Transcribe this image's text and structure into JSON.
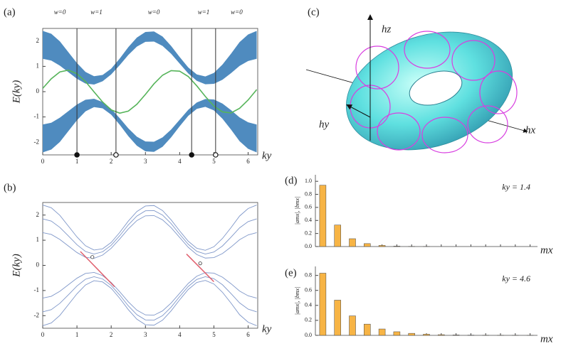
{
  "chart_data": [
    {
      "type": "area",
      "label": "(a)",
      "xlabel": "ky",
      "ylabel": "E(ky)",
      "xlim": [
        0,
        6.28
      ],
      "ylim": [
        -2.5,
        2.5
      ],
      "xticks": [
        0,
        1,
        2,
        3,
        4,
        5,
        6
      ],
      "yticks": [
        -2,
        -1,
        0,
        1,
        2
      ],
      "x": [
        0,
        0.25,
        0.5,
        0.75,
        1,
        1.25,
        1.5,
        1.75,
        2,
        2.25,
        2.5,
        2.75,
        3,
        3.25,
        3.5,
        3.75,
        4,
        4.25,
        4.5,
        4.75,
        5,
        5.25,
        5.5,
        5.75,
        6,
        6.25
      ],
      "band_color": "#4f8bbf",
      "bands": [
        {
          "upper": [
            2.4,
            2.29,
            1.99,
            1.56,
            1.13,
            0.78,
            0.61,
            0.66,
            0.91,
            1.31,
            1.76,
            2.14,
            2.36,
            2.38,
            2.18,
            1.81,
            1.37,
            0.96,
            0.68,
            0.6,
            0.74,
            1.07,
            1.5,
            1.96,
            2.26,
            2.4
          ],
          "lower": [
            1.3,
            1.23,
            1.03,
            0.77,
            0.51,
            0.32,
            0.28,
            0.41,
            0.68,
            1.05,
            1.45,
            1.78,
            1.97,
            1.98,
            1.81,
            1.5,
            1.11,
            0.72,
            0.43,
            0.29,
            0.31,
            0.47,
            0.73,
            1.02,
            1.21,
            1.3
          ]
        },
        {
          "upper": [
            -1.3,
            -1.23,
            -1.03,
            -0.77,
            -0.51,
            -0.32,
            -0.28,
            -0.41,
            -0.68,
            -1.05,
            -1.45,
            -1.78,
            -1.97,
            -1.98,
            -1.81,
            -1.5,
            -1.11,
            -0.72,
            -0.43,
            -0.29,
            -0.31,
            -0.47,
            -0.73,
            -1.02,
            -1.21,
            -1.3
          ],
          "lower": [
            -2.4,
            -2.29,
            -1.99,
            -1.56,
            -1.13,
            -0.78,
            -0.61,
            -0.66,
            -0.91,
            -1.31,
            -1.76,
            -2.14,
            -2.36,
            -2.38,
            -2.18,
            -1.81,
            -1.37,
            -0.96,
            -0.68,
            -0.6,
            -0.74,
            -1.07,
            -1.5,
            -1.96,
            -2.26,
            -2.4
          ]
        }
      ],
      "series": [
        {
          "color": "#56b45a",
          "values": [
            0.13,
            0.51,
            0.78,
            0.85,
            0.71,
            0.4,
            -0.01,
            -0.41,
            -0.72,
            -0.85,
            -0.77,
            -0.5,
            -0.11,
            0.31,
            0.65,
            0.83,
            0.81,
            0.6,
            0.23,
            -0.19,
            -0.57,
            -0.8,
            -0.84,
            -0.66,
            -0.33,
            0.08
          ]
        }
      ],
      "transitions": [
        1.0,
        2.14,
        4.35,
        5.05
      ],
      "transition_markers": [
        "filled",
        "open",
        "filled",
        "open"
      ],
      "phase_labels": [
        "w=0",
        "w=1",
        "w=0",
        "w=1",
        "w=0"
      ]
    },
    {
      "type": "line",
      "label": "(b)",
      "xlabel": "ky",
      "ylabel": "E(ky)",
      "xlim": [
        0,
        6.28
      ],
      "ylim": [
        -2.5,
        2.5
      ],
      "xticks": [
        0,
        1,
        2,
        3,
        4,
        5,
        6
      ],
      "yticks": [
        -2,
        -1,
        0,
        1,
        2
      ],
      "x": [
        0,
        0.25,
        0.5,
        0.75,
        1,
        1.25,
        1.5,
        1.75,
        2,
        2.25,
        2.5,
        2.75,
        3,
        3.25,
        3.5,
        3.75,
        4,
        4.25,
        4.5,
        4.75,
        5,
        5.25,
        5.5,
        5.75,
        6,
        6.25
      ],
      "series": [
        {
          "color": "#7f97c9",
          "values": [
            2.4,
            2.29,
            1.99,
            1.56,
            1.13,
            0.78,
            0.61,
            0.66,
            0.91,
            1.31,
            1.76,
            2.14,
            2.36,
            2.38,
            2.18,
            1.81,
            1.37,
            0.96,
            0.68,
            0.6,
            0.74,
            1.07,
            1.5,
            1.96,
            2.26,
            2.4
          ]
        },
        {
          "color": "#7f97c9",
          "values": [
            1.85,
            1.76,
            1.51,
            1.17,
            0.82,
            0.55,
            0.45,
            0.54,
            0.8,
            1.18,
            1.61,
            1.96,
            2.17,
            2.18,
            2.0,
            1.66,
            1.24,
            0.84,
            0.56,
            0.45,
            0.53,
            0.77,
            1.12,
            1.49,
            1.74,
            1.85
          ]
        },
        {
          "color": "#7f97c9",
          "values": [
            1.3,
            1.23,
            1.03,
            0.77,
            0.51,
            0.32,
            0.28,
            0.41,
            0.68,
            1.05,
            1.45,
            1.78,
            1.97,
            1.98,
            1.81,
            1.5,
            1.11,
            0.72,
            0.43,
            0.29,
            0.31,
            0.47,
            0.73,
            1.02,
            1.21,
            1.3
          ]
        },
        {
          "color": "#7f97c9",
          "values": [
            -1.3,
            -1.23,
            -1.03,
            -0.77,
            -0.51,
            -0.32,
            -0.28,
            -0.41,
            -0.68,
            -1.05,
            -1.45,
            -1.78,
            -1.97,
            -1.98,
            -1.81,
            -1.5,
            -1.11,
            -0.72,
            -0.43,
            -0.29,
            -0.31,
            -0.47,
            -0.73,
            -1.02,
            -1.21,
            -1.3
          ]
        },
        {
          "color": "#7f97c9",
          "values": [
            -1.85,
            -1.76,
            -1.51,
            -1.17,
            -0.82,
            -0.55,
            -0.45,
            -0.54,
            -0.8,
            -1.18,
            -1.61,
            -1.96,
            -2.17,
            -2.18,
            -2.0,
            -1.66,
            -1.24,
            -0.84,
            -0.56,
            -0.45,
            -0.53,
            -0.77,
            -1.12,
            -1.49,
            -1.74,
            -1.85
          ]
        },
        {
          "color": "#7f97c9",
          "values": [
            -2.4,
            -2.29,
            -1.99,
            -1.56,
            -1.13,
            -0.78,
            -0.61,
            -0.66,
            -0.91,
            -1.31,
            -1.76,
            -2.14,
            -2.36,
            -2.38,
            -2.18,
            -1.81,
            -1.37,
            -0.96,
            -0.68,
            -0.6,
            -0.74,
            -1.07,
            -1.5,
            -1.96,
            -2.26,
            -2.4
          ]
        },
        {
          "color": "#e0606e",
          "x": [
            1.1,
            1.6,
            2.1
          ],
          "values": [
            0.55,
            -0.15,
            -0.85
          ]
        },
        {
          "color": "#e0606e",
          "x": [
            4.2,
            4.6,
            5.0
          ],
          "values": [
            0.45,
            -0.1,
            -0.65
          ]
        }
      ],
      "points": {
        "x": [
          1.45,
          4.6
        ],
        "values": [
          0.33,
          0.08
        ]
      }
    },
    {
      "type": "bar",
      "label": "(d)",
      "xlabel": "mx",
      "ylabel": "|amx|, |bmx|",
      "annotation": "ky = 1.4",
      "color": "#f7b445",
      "ylim": [
        0,
        1.1
      ],
      "yticks": [
        {
          "value": 0,
          "label": "0.0"
        },
        0.2,
        0.4,
        0.6,
        0.8,
        {
          "value": 1,
          "label": "1.0"
        }
      ],
      "categories": [
        null,
        null,
        null,
        null,
        null,
        null,
        null,
        null,
        null,
        null,
        null,
        null,
        null,
        null,
        null
      ],
      "values": [
        0.94,
        0.33,
        0.12,
        0.045,
        0.017,
        0.006,
        0.002,
        0.001,
        0,
        0,
        0,
        0,
        0,
        0,
        0
      ]
    },
    {
      "type": "bar",
      "label": "(e)",
      "xlabel": "mx",
      "ylabel": "|amx|, |bmx|",
      "annotation": "ky = 4.6",
      "color": "#f7b445",
      "ylim": [
        0,
        0.92
      ],
      "yticks": [
        {
          "value": 0,
          "label": "0.0"
        },
        0.2,
        0.4,
        0.6,
        0.8
      ],
      "categories": [
        null,
        null,
        null,
        null,
        null,
        null,
        null,
        null,
        null,
        null,
        null,
        null,
        null,
        null,
        null
      ],
      "values": [
        0.83,
        0.47,
        0.26,
        0.15,
        0.085,
        0.048,
        0.027,
        0.015,
        0.009,
        0.005,
        0.003,
        0.0015,
        0.001,
        0.0005,
        0.0003
      ]
    }
  ],
  "diagram": {
    "label": "(c)",
    "axes": [
      "hz",
      "hy",
      "hx"
    ]
  }
}
